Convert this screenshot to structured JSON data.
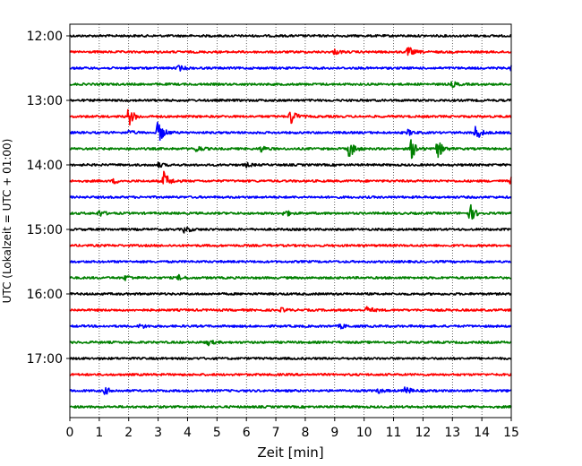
{
  "chart_data": {
    "type": "line",
    "xlabel": "Zeit  [min]",
    "ylabel": "UTC (Lokalzeit = UTC + 01:00)",
    "xlim": [
      0,
      15
    ],
    "x_ticks": [
      "0",
      "1",
      "2",
      "3",
      "4",
      "5",
      "6",
      "7",
      "8",
      "9",
      "10",
      "11",
      "12",
      "13",
      "14",
      "15"
    ],
    "y_tick_labels": [
      "12:00",
      "13:00",
      "14:00",
      "15:00",
      "16:00",
      "17:00"
    ],
    "grid": "vertical dotted",
    "row_interval_min": 15,
    "row_colors": [
      "#000000",
      "#ff0000",
      "#0000ff",
      "#008000"
    ],
    "rows": [
      {
        "time": "12:00",
        "events": []
      },
      {
        "time": "12:15",
        "events": [
          [
            9.0,
            0.5
          ],
          [
            11.5,
            1.2
          ]
        ]
      },
      {
        "time": "12:30",
        "events": [
          [
            3.7,
            0.6
          ],
          [
            15.0,
            0.7
          ]
        ]
      },
      {
        "time": "12:45",
        "events": [
          [
            13.0,
            0.6
          ]
        ]
      },
      {
        "time": "13:00",
        "events": []
      },
      {
        "time": "13:15",
        "events": [
          [
            2.0,
            2.2
          ],
          [
            7.5,
            2.0
          ]
        ]
      },
      {
        "time": "13:30",
        "events": [
          [
            3.0,
            2.8
          ],
          [
            13.8,
            1.8
          ],
          [
            11.5,
            0.6
          ],
          [
            2.0,
            0.5
          ]
        ]
      },
      {
        "time": "13:45",
        "events": [
          [
            4.3,
            0.8
          ],
          [
            6.5,
            0.7
          ],
          [
            9.5,
            2.2
          ],
          [
            11.6,
            2.4
          ],
          [
            12.5,
            2.0
          ]
        ]
      },
      {
        "time": "14:00",
        "events": [
          [
            3.0,
            0.5
          ],
          [
            6.0,
            0.4
          ]
        ]
      },
      {
        "time": "14:15",
        "events": [
          [
            3.2,
            2.2
          ],
          [
            1.5,
            0.5
          ],
          [
            15.0,
            0.8
          ]
        ]
      },
      {
        "time": "14:30",
        "events": []
      },
      {
        "time": "14:45",
        "events": [
          [
            1.0,
            0.7
          ],
          [
            7.3,
            0.8
          ],
          [
            13.6,
            2.0
          ]
        ]
      },
      {
        "time": "15:00",
        "events": [
          [
            3.9,
            0.8
          ]
        ]
      },
      {
        "time": "15:15",
        "events": []
      },
      {
        "time": "15:30",
        "events": []
      },
      {
        "time": "15:45",
        "events": [
          [
            1.9,
            0.6
          ],
          [
            3.7,
            0.5
          ]
        ]
      },
      {
        "time": "16:00",
        "events": []
      },
      {
        "time": "16:15",
        "events": [
          [
            10.1,
            0.8
          ],
          [
            7.2,
            0.4
          ]
        ]
      },
      {
        "time": "16:30",
        "events": [
          [
            2.4,
            0.5
          ],
          [
            9.2,
            0.5
          ]
        ]
      },
      {
        "time": "16:45",
        "events": [
          [
            4.7,
            0.6
          ]
        ]
      },
      {
        "time": "17:00",
        "events": []
      },
      {
        "time": "17:15",
        "events": []
      },
      {
        "time": "17:30",
        "events": [
          [
            1.2,
            0.8
          ],
          [
            11.4,
            1.0
          ],
          [
            10.5,
            0.5
          ]
        ]
      },
      {
        "time": "17:45",
        "events": []
      }
    ]
  }
}
